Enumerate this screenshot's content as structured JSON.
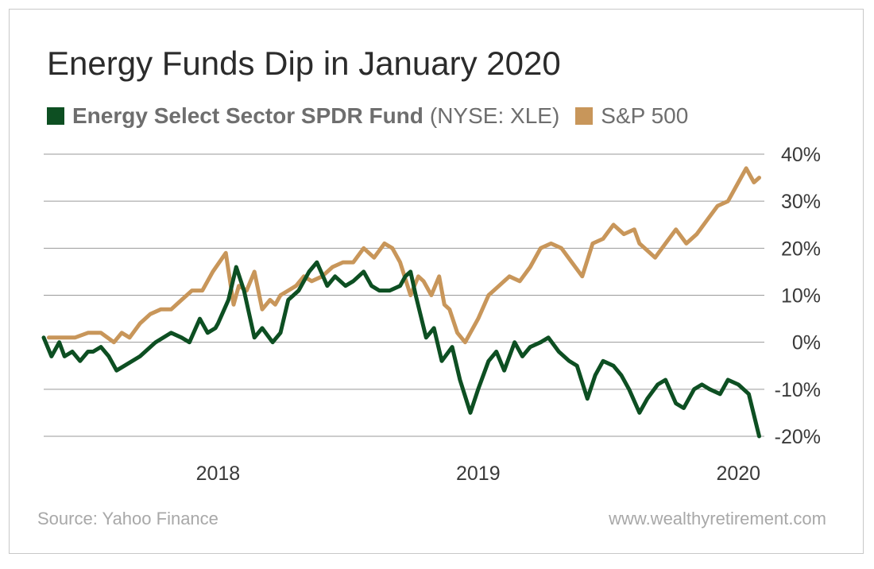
{
  "title": "Energy Funds Dip in January 2020",
  "legend": {
    "xle_name": "Energy Select Sector SPDR Fund",
    "xle_ticker": "(NYSE: XLE)",
    "sp_name": "S&P 500"
  },
  "footer": {
    "source": "Source: Yahoo Finance",
    "site": "www.wealthyretirement.com"
  },
  "colors": {
    "xle": "#0d4f22",
    "sp": "#c8965a",
    "grid": "#9a9a9a",
    "text": "#3a3a3a"
  },
  "chart_data": {
    "type": "line",
    "y_ticks": [
      "40%",
      "30%",
      "20%",
      "10%",
      "0%",
      "-10%",
      "-20%"
    ],
    "y_tick_values": [
      40,
      30,
      20,
      10,
      0,
      -10,
      -20
    ],
    "x_ticks": [
      "2018",
      "2019",
      "2020"
    ],
    "x_tick_values": [
      2018.0,
      2019.0,
      2020.0
    ],
    "xlim": [
      2017.33,
      2020.1
    ],
    "ylim": [
      -20,
      40
    ],
    "grid": true,
    "legend_position": "top",
    "series": [
      {
        "name": "Energy Select Sector SPDR Fund (NYSE: XLE)",
        "key": "xle",
        "x": [
          2017.33,
          2017.36,
          2017.39,
          2017.41,
          2017.44,
          2017.47,
          2017.5,
          2017.52,
          2017.55,
          2017.58,
          2017.61,
          2017.64,
          2017.7,
          2017.76,
          2017.82,
          2017.86,
          2017.89,
          2017.93,
          2017.96,
          2017.99,
          2018.0,
          2018.04,
          2018.07,
          2018.1,
          2018.14,
          2018.17,
          2018.21,
          2018.24,
          2018.27,
          2018.31,
          2018.35,
          2018.38,
          2018.42,
          2018.45,
          2018.49,
          2018.52,
          2018.56,
          2018.59,
          2018.62,
          2018.66,
          2018.7,
          2018.72,
          2018.74,
          2018.76,
          2018.8,
          2018.83,
          2018.86,
          2018.9,
          2018.93,
          2018.97,
          2019.0,
          2019.04,
          2019.07,
          2019.1,
          2019.14,
          2019.17,
          2019.2,
          2019.24,
          2019.27,
          2019.31,
          2019.35,
          2019.38,
          2019.42,
          2019.45,
          2019.48,
          2019.52,
          2019.55,
          2019.58,
          2019.62,
          2019.65,
          2019.69,
          2019.72,
          2019.76,
          2019.79,
          2019.83,
          2019.86,
          2019.89,
          2019.93,
          2019.96,
          2020.0,
          2020.04,
          2020.08
        ],
        "y": [
          1,
          -3,
          0,
          -3,
          -2,
          -4,
          -2,
          -2,
          -1,
          -3,
          -6,
          -5,
          -3,
          0,
          2,
          1,
          0,
          5,
          2,
          3,
          4,
          9,
          16,
          11,
          1,
          3,
          0,
          2,
          9,
          11,
          15,
          17,
          12,
          14,
          12,
          13,
          15,
          12,
          11,
          11,
          12,
          14,
          15,
          10,
          1,
          3,
          -4,
          -1,
          -8,
          -15,
          -10,
          -4,
          -2,
          -6,
          0,
          -3,
          -1,
          0,
          1,
          -2,
          -4,
          -5,
          -12,
          -7,
          -4,
          -5,
          -7,
          -10,
          -15,
          -12,
          -9,
          -8,
          -13,
          -14,
          -10,
          -9,
          -10,
          -11,
          -8,
          -9,
          -11,
          -20
        ]
      },
      {
        "name": "S&P 500",
        "key": "sp",
        "x": [
          2017.35,
          2017.4,
          2017.45,
          2017.5,
          2017.55,
          2017.6,
          2017.63,
          2017.66,
          2017.7,
          2017.74,
          2017.78,
          2017.82,
          2017.86,
          2017.9,
          2017.94,
          2017.98,
          2018.03,
          2018.06,
          2018.08,
          2018.11,
          2018.14,
          2018.17,
          2018.2,
          2018.22,
          2018.24,
          2018.27,
          2018.3,
          2018.33,
          2018.36,
          2018.4,
          2018.44,
          2018.48,
          2018.52,
          2018.56,
          2018.6,
          2018.64,
          2018.67,
          2018.7,
          2018.74,
          2018.77,
          2018.79,
          2018.82,
          2018.85,
          2018.87,
          2018.89,
          2018.92,
          2018.95,
          2019.0,
          2019.04,
          2019.08,
          2019.12,
          2019.16,
          2019.2,
          2019.24,
          2019.28,
          2019.32,
          2019.36,
          2019.4,
          2019.44,
          2019.48,
          2019.52,
          2019.56,
          2019.6,
          2019.62,
          2019.64,
          2019.68,
          2019.72,
          2019.76,
          2019.8,
          2019.84,
          2019.88,
          2019.92,
          2019.96,
          2020.0,
          2020.03,
          2020.06,
          2020.08
        ],
        "y": [
          1,
          1,
          1,
          2,
          2,
          0,
          2,
          1,
          4,
          6,
          7,
          7,
          9,
          11,
          11,
          15,
          19,
          8,
          12,
          11,
          15,
          7,
          9,
          8,
          10,
          11,
          12,
          14,
          13,
          14,
          16,
          17,
          17,
          20,
          18,
          21,
          20,
          17,
          10,
          14,
          13,
          10,
          14,
          8,
          7,
          2,
          0,
          5,
          10,
          12,
          14,
          13,
          16,
          20,
          21,
          20,
          17,
          14,
          21,
          22,
          25,
          23,
          24,
          21,
          20,
          18,
          21,
          24,
          21,
          23,
          26,
          29,
          30,
          34,
          37,
          34,
          35
        ]
      }
    ]
  }
}
